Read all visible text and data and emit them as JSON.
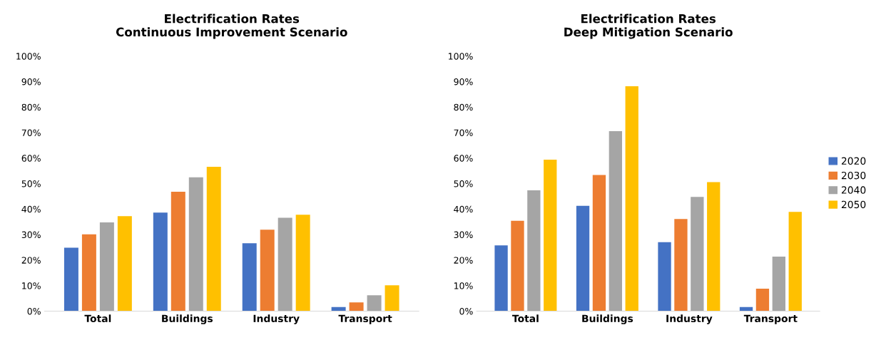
{
  "chart_data": [
    {
      "type": "bar",
      "title": "Electrification Rates\nContinuous Improvement Scenario",
      "categories": [
        "Total",
        "Buildings",
        "Industry",
        "Transport"
      ],
      "ylim": [
        0,
        1
      ],
      "yticks": [
        {
          "value": 0,
          "label": "0%"
        },
        {
          "value": 0.1,
          "label": "10%"
        },
        {
          "value": 0.2,
          "label": "20%"
        },
        {
          "value": 0.3,
          "label": "30%"
        },
        {
          "value": 0.4,
          "label": "40%"
        },
        {
          "value": 0.5,
          "label": "50%"
        },
        {
          "value": 0.6,
          "label": "60%"
        },
        {
          "value": 0.7,
          "label": "70%"
        },
        {
          "value": 0.8,
          "label": "80%"
        },
        {
          "value": 0.9,
          "label": "90%"
        },
        {
          "value": 1,
          "label": "100%"
        }
      ],
      "series": [
        {
          "color": "#4472c4",
          "values": [
            0.249,
            0.386,
            0.266,
            0.016
          ]
        },
        {
          "color": "#ed7d31",
          "values": [
            0.301,
            0.468,
            0.319,
            0.034
          ]
        },
        {
          "color": "#a5a5a5",
          "values": [
            0.348,
            0.525,
            0.366,
            0.062
          ]
        },
        {
          "color": "#ffc000",
          "values": [
            0.372,
            0.566,
            0.378,
            0.101
          ]
        }
      ],
      "legend": false
    },
    {
      "type": "bar",
      "title": "Electrification Rates\nDeep Mitigation Scenario",
      "categories": [
        "Total",
        "Buildings",
        "Industry",
        "Transport"
      ],
      "ylim": [
        0,
        1
      ],
      "yticks": [
        {
          "value": 0,
          "label": "0%"
        },
        {
          "value": 0.1,
          "label": "10%"
        },
        {
          "value": 0.2,
          "label": "20%"
        },
        {
          "value": 0.3,
          "label": "30%"
        },
        {
          "value": 0.4,
          "label": "40%"
        },
        {
          "value": 0.5,
          "label": "50%"
        },
        {
          "value": 0.6,
          "label": "60%"
        },
        {
          "value": 0.7,
          "label": "70%"
        },
        {
          "value": 0.8,
          "label": "80%"
        },
        {
          "value": 0.9,
          "label": "90%"
        },
        {
          "value": 1,
          "label": "100%"
        }
      ],
      "series": [
        {
          "name": "2020",
          "color": "#4472c4",
          "values": [
            0.258,
            0.413,
            0.27,
            0.016
          ]
        },
        {
          "name": "2030",
          "color": "#ed7d31",
          "values": [
            0.354,
            0.534,
            0.361,
            0.088
          ]
        },
        {
          "name": "2040",
          "color": "#a5a5a5",
          "values": [
            0.474,
            0.706,
            0.448,
            0.214
          ]
        },
        {
          "name": "2050",
          "color": "#ffc000",
          "values": [
            0.594,
            0.882,
            0.506,
            0.389
          ]
        }
      ],
      "legend": "right"
    }
  ]
}
